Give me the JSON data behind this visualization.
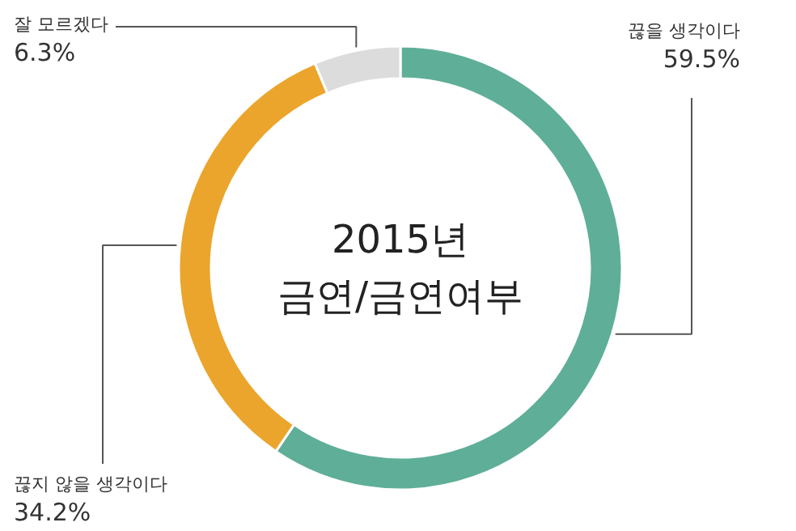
{
  "chart_data": {
    "type": "donut",
    "title": "2015년\n금연/금연여부",
    "categories": [
      "끊을 생각이다",
      "끊지 않을 생각이다",
      "잘 모르겠다"
    ],
    "values": [
      59.5,
      34.2,
      6.3
    ],
    "colors": [
      "#5fae98",
      "#eba52c",
      "#dcdcdc"
    ],
    "value_labels": [
      "59.5%",
      "34.2%",
      "6.3%"
    ]
  }
}
